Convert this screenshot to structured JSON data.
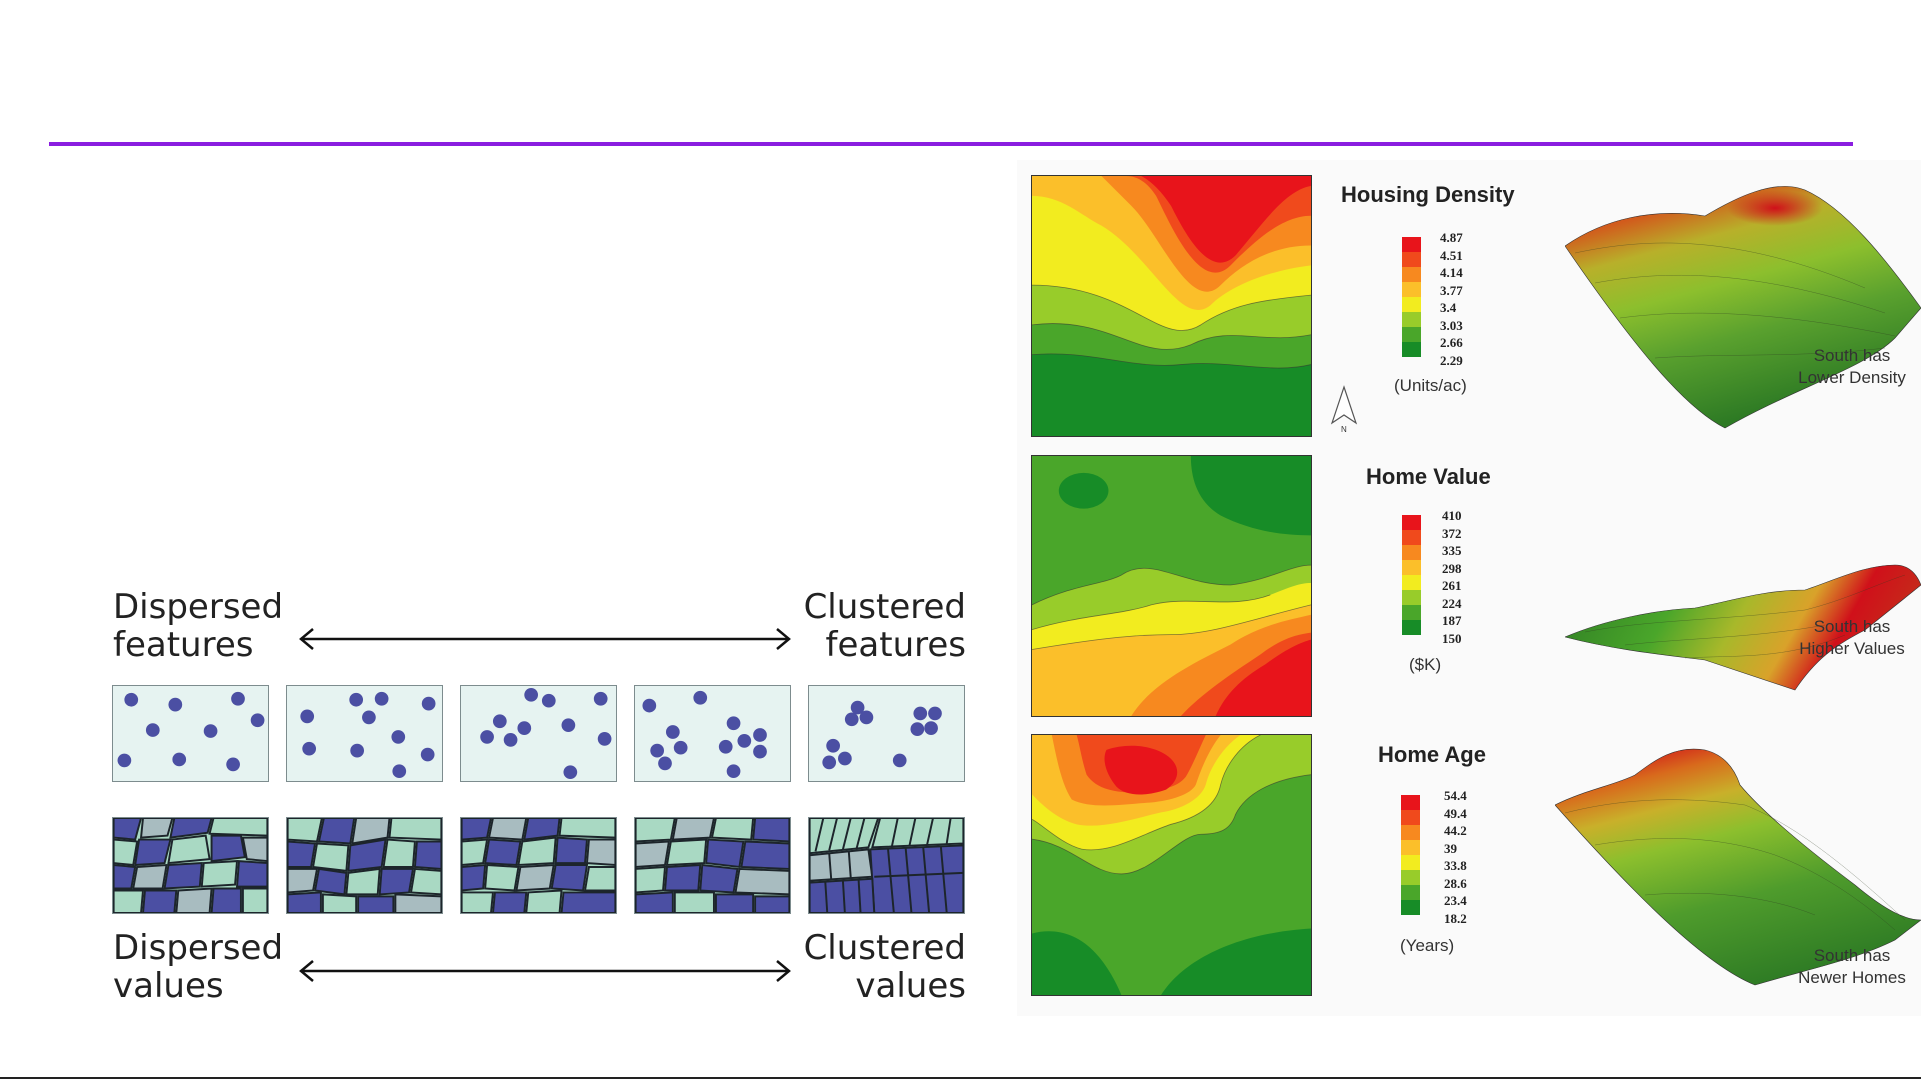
{
  "left_diagram": {
    "top_left": "Dispersed\nfeatures",
    "top_right": "Clustered\nfeatures",
    "bottom_left": "Dispersed\nvalues",
    "bottom_right": "Clustered\nvalues"
  },
  "maps": [
    {
      "title": "Housing Density",
      "legend_values": [
        "4.87",
        "4.51",
        "4.14",
        "3.77",
        "3.4",
        "3.03",
        "2.66",
        "2.29"
      ],
      "unit": "(Units/ac)",
      "note": "South has\nLower Density",
      "north_label": "N"
    },
    {
      "title": "Home Value",
      "legend_values": [
        "410",
        "372",
        "335",
        "298",
        "261",
        "224",
        "187",
        "150"
      ],
      "unit": "($K)",
      "note": "South has\nHigher Values"
    },
    {
      "title": "Home Age",
      "legend_values": [
        "54.4",
        "49.4",
        "44.2",
        "39",
        "33.8",
        "28.6",
        "23.4",
        "18.2"
      ],
      "unit": "(Years)",
      "note": "South has\nNewer Homes"
    }
  ],
  "colors": {
    "accent_rule": "#8a1de0",
    "dot": "#4b4fa3",
    "scale": [
      "#e8141b",
      "#f04a1c",
      "#f7891f",
      "#fbbf2a",
      "#f2ec1f",
      "#98cc2a",
      "#4aa62a",
      "#178c27"
    ]
  }
}
